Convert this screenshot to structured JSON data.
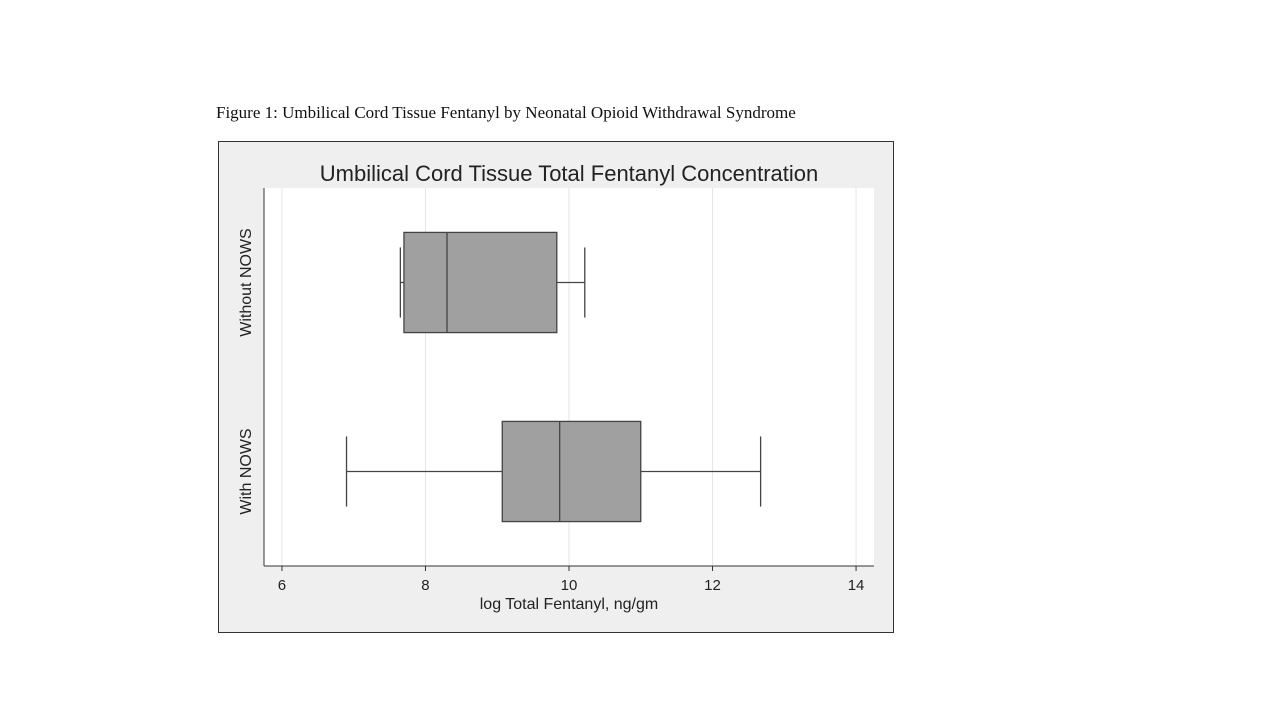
{
  "caption": "Figure 1: Umbilical Cord Tissue Fentanyl by Neonatal Opioid Withdrawal Syndrome",
  "chart_data": {
    "type": "boxplot",
    "orientation": "horizontal",
    "title": "Umbilical Cord Tissue Total Fentanyl Concentration",
    "xlabel": "log Total Fentanyl, ng/gm",
    "ylabel": "",
    "xlim": [
      5.75,
      14.25
    ],
    "xticks": [
      6,
      8,
      10,
      12,
      14
    ],
    "vertical_grid": true,
    "groups": [
      {
        "name": "Without NOWS",
        "whisker_low": 7.65,
        "q1": 7.7,
        "median": 8.3,
        "q3": 9.83,
        "whisker_high": 10.22
      },
      {
        "name": "With NOWS",
        "whisker_low": 6.9,
        "q1": 9.07,
        "median": 9.87,
        "q3": 11.0,
        "whisker_high": 12.67
      }
    ],
    "colors": {
      "box_fill": "#a0a0a0",
      "box_stroke": "#444444",
      "plot_bg": "#ffffff",
      "outer_bg": "#efefef",
      "grid": "#e6e6e6"
    }
  }
}
